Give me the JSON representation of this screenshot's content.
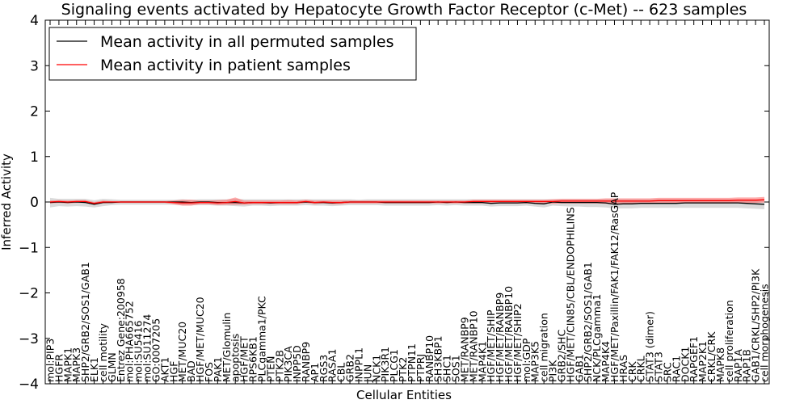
{
  "chart_data": {
    "type": "line",
    "title": "Signaling events activated by Hepatocyte Growth Factor Receptor (c-Met) -- 623 samples",
    "xlabel": "Cellular Entities",
    "ylabel": "Inferred Activity",
    "ylim": [
      -4,
      4
    ],
    "yticks": [
      -4,
      -3,
      -2,
      -1,
      0,
      1,
      2,
      3,
      4
    ],
    "ytick_labels": [
      "−4",
      "−3",
      "−2",
      "−1",
      "0",
      "1",
      "2",
      "3",
      "4"
    ],
    "grid": false,
    "legend_position": "top-left",
    "categories": [
      "mol:PIP3",
      "HGFR",
      "MAPK1",
      "MAPK3",
      "SHP2/GRB2/SOS1/GAB1",
      "ELK1",
      "cell motility",
      "GLMN",
      "Entrez Gene:200958",
      "mol:PHA665752",
      "mol:SU5416",
      "mol:SU11274",
      "GO:0007205",
      "AKT1",
      "HGF",
      "MET/MUC20",
      "BAD",
      "HGF/MET/MUC20",
      "FOS",
      "PAK1",
      "MET/Glomulin",
      "apoptosis",
      "HGF/MET",
      "RPS6KB1",
      "PLCgamma1/PKC",
      "PTEN",
      "PTK2B",
      "PIK3CA",
      "INPP5D",
      "RANBP9",
      "AP1",
      "RGS3",
      "RASA1",
      "CBL",
      "GRB2",
      "INPPL1",
      "JUN",
      "NCK1",
      "PIK3R1",
      "PLCG1",
      "PTK2",
      "PTPN11",
      "PTPRJ",
      "RANBP10",
      "SH3KBP1",
      "SHC1",
      "SOS1",
      "MET/RANBP9",
      "MET/RANBP10",
      "MAP4K1",
      "HGF/MET/SHIP",
      "HGF/MET/RANBP9",
      "HGF/MET/RANBP10",
      "HGF/MET/SHIP2",
      "mol:GDP",
      "MAP3K5",
      "cell migration",
      "PI3K",
      "GRB2/SHC",
      "HGF/MET/CIN85/CBL/ENDOPHILINS",
      "GAB1",
      "SHP2/GRB2/SOS1/GAB1",
      "NCK/PLCgamma1",
      "MAP4K4",
      "HGF/MET/Paxillin/FAK1/FAK12/RasGAP",
      "HRAS",
      "CRK",
      "CRKL",
      "STAT3 (dimer)",
      "STAT3",
      "SRC",
      "RAC1",
      "DOCK1",
      "RAPGEF1",
      "MAP2K1",
      "CRKL/CRK",
      "MAPK8",
      "cell proliferation",
      "RAP1A",
      "RAP1B",
      "GAB1/CRKL/SHP2/PI3K",
      "cell morphogenesis"
    ],
    "series": [
      {
        "name": "Mean activity in all permuted samples",
        "color": "#000000",
        "values": [
          -0.01,
          0.0,
          -0.01,
          0.0,
          -0.01,
          -0.05,
          -0.01,
          -0.01,
          0.0,
          0.0,
          0.0,
          0.0,
          0.0,
          0.0,
          0.0,
          0.0,
          -0.01,
          0.0,
          0.0,
          -0.01,
          -0.01,
          -0.01,
          -0.02,
          -0.01,
          -0.01,
          -0.02,
          -0.01,
          -0.01,
          -0.01,
          0.0,
          -0.01,
          -0.01,
          -0.02,
          -0.01,
          0.0,
          0.0,
          0.0,
          0.0,
          -0.01,
          -0.01,
          -0.01,
          -0.01,
          -0.01,
          -0.01,
          0.0,
          -0.01,
          0.0,
          -0.01,
          -0.01,
          -0.01,
          -0.03,
          -0.02,
          -0.02,
          -0.02,
          -0.01,
          -0.03,
          -0.04,
          0.0,
          -0.01,
          -0.01,
          -0.01,
          -0.01,
          -0.01,
          -0.02,
          -0.05,
          -0.04,
          -0.04,
          -0.03,
          -0.03,
          -0.03,
          -0.03,
          -0.03,
          -0.02,
          -0.02,
          -0.02,
          -0.02,
          -0.02,
          -0.02,
          -0.02,
          -0.03,
          -0.04,
          -0.05
        ],
        "band_upper": [
          0.09,
          0.07,
          0.07,
          0.07,
          0.07,
          0.04,
          0.07,
          0.06,
          0.05,
          0.05,
          0.05,
          0.05,
          0.05,
          0.05,
          0.05,
          0.06,
          0.05,
          0.06,
          0.06,
          0.06,
          0.06,
          0.07,
          0.06,
          0.06,
          0.06,
          0.06,
          0.06,
          0.06,
          0.06,
          0.06,
          0.06,
          0.06,
          0.06,
          0.06,
          0.06,
          0.05,
          0.06,
          0.06,
          0.06,
          0.06,
          0.06,
          0.06,
          0.06,
          0.06,
          0.06,
          0.06,
          0.06,
          0.06,
          0.06,
          0.06,
          0.06,
          0.06,
          0.06,
          0.06,
          0.06,
          0.06,
          0.06,
          0.06,
          0.06,
          0.06,
          0.06,
          0.06,
          0.06,
          0.06,
          0.06,
          0.06,
          0.06,
          0.06,
          0.06,
          0.06,
          0.06,
          0.06,
          0.06,
          0.06,
          0.06,
          0.06,
          0.06,
          0.06,
          0.06,
          0.06,
          0.06,
          0.06
        ],
        "band_lower": [
          -0.12,
          -0.09,
          -0.1,
          -0.09,
          -0.1,
          -0.12,
          -0.09,
          -0.07,
          -0.06,
          -0.06,
          -0.06,
          -0.06,
          -0.06,
          -0.06,
          -0.06,
          -0.07,
          -0.07,
          -0.07,
          -0.07,
          -0.08,
          -0.08,
          -0.09,
          -0.1,
          -0.08,
          -0.08,
          -0.09,
          -0.08,
          -0.08,
          -0.08,
          -0.07,
          -0.08,
          -0.08,
          -0.09,
          -0.08,
          -0.07,
          -0.07,
          -0.07,
          -0.07,
          -0.08,
          -0.08,
          -0.08,
          -0.08,
          -0.08,
          -0.08,
          -0.07,
          -0.08,
          -0.07,
          -0.08,
          -0.08,
          -0.08,
          -0.1,
          -0.09,
          -0.09,
          -0.09,
          -0.08,
          -0.1,
          -0.12,
          -0.08,
          -0.09,
          -0.1,
          -0.1,
          -0.11,
          -0.11,
          -0.12,
          -0.14,
          -0.14,
          -0.14,
          -0.13,
          -0.13,
          -0.13,
          -0.13,
          -0.13,
          -0.13,
          -0.13,
          -0.13,
          -0.13,
          -0.13,
          -0.13,
          -0.13,
          -0.14,
          -0.15,
          -0.16
        ]
      },
      {
        "name": "Mean activity in patient samples",
        "color": "#ff0000",
        "values": [
          0.0,
          0.01,
          0.0,
          0.01,
          0.01,
          -0.03,
          0.0,
          0.0,
          0.0,
          0.0,
          0.0,
          0.0,
          0.0,
          0.0,
          -0.01,
          -0.02,
          -0.02,
          -0.01,
          -0.01,
          -0.02,
          -0.01,
          0.01,
          -0.02,
          -0.01,
          -0.01,
          -0.01,
          -0.01,
          -0.01,
          -0.01,
          0.01,
          -0.01,
          0.0,
          -0.01,
          -0.01,
          0.0,
          0.0,
          0.0,
          0.0,
          0.0,
          0.0,
          0.0,
          0.0,
          0.0,
          0.0,
          0.0,
          0.0,
          0.0,
          0.0,
          0.01,
          0.01,
          0.01,
          0.01,
          0.01,
          0.01,
          0.01,
          0.01,
          0.01,
          0.01,
          0.02,
          0.02,
          0.02,
          0.02,
          0.02,
          0.02,
          0.02,
          0.02,
          0.02,
          0.02,
          0.02,
          0.03,
          0.03,
          0.03,
          0.03,
          0.03,
          0.03,
          0.03,
          0.03,
          0.03,
          0.04,
          0.04,
          0.04,
          0.05
        ],
        "band_upper": [
          0.03,
          0.04,
          0.03,
          0.04,
          0.04,
          0.0,
          0.03,
          0.02,
          0.02,
          0.02,
          0.02,
          0.02,
          0.02,
          0.02,
          0.03,
          0.05,
          0.05,
          0.03,
          0.03,
          0.04,
          0.05,
          0.1,
          0.03,
          0.03,
          0.03,
          0.03,
          0.03,
          0.04,
          0.03,
          0.05,
          0.03,
          0.03,
          0.03,
          0.03,
          0.03,
          0.03,
          0.03,
          0.03,
          0.03,
          0.03,
          0.03,
          0.03,
          0.03,
          0.03,
          0.03,
          0.03,
          0.03,
          0.03,
          0.05,
          0.05,
          0.05,
          0.05,
          0.05,
          0.05,
          0.05,
          0.05,
          0.05,
          0.06,
          0.07,
          0.07,
          0.07,
          0.07,
          0.07,
          0.08,
          0.08,
          0.08,
          0.08,
          0.08,
          0.08,
          0.09,
          0.09,
          0.09,
          0.09,
          0.09,
          0.09,
          0.09,
          0.09,
          0.09,
          0.1,
          0.1,
          0.1,
          0.11
        ],
        "band_lower": [
          -0.03,
          -0.02,
          -0.03,
          -0.02,
          -0.02,
          -0.06,
          -0.03,
          -0.02,
          -0.02,
          -0.02,
          -0.02,
          -0.02,
          -0.02,
          -0.02,
          -0.05,
          -0.08,
          -0.08,
          -0.05,
          -0.05,
          -0.07,
          -0.06,
          -0.06,
          -0.06,
          -0.05,
          -0.05,
          -0.05,
          -0.05,
          -0.05,
          -0.05,
          -0.02,
          -0.05,
          -0.03,
          -0.05,
          -0.05,
          -0.03,
          -0.03,
          -0.03,
          -0.03,
          -0.03,
          -0.03,
          -0.03,
          -0.03,
          -0.03,
          -0.03,
          -0.03,
          -0.03,
          -0.03,
          -0.03,
          -0.03,
          -0.03,
          -0.03,
          -0.03,
          -0.03,
          -0.03,
          -0.03,
          -0.03,
          -0.03,
          -0.04,
          -0.03,
          -0.03,
          -0.03,
          -0.03,
          -0.03,
          -0.04,
          -0.04,
          -0.04,
          -0.04,
          -0.04,
          -0.04,
          -0.03,
          -0.03,
          -0.03,
          -0.03,
          -0.03,
          -0.03,
          -0.03,
          -0.03,
          -0.03,
          -0.02,
          -0.02,
          -0.02,
          -0.01
        ]
      }
    ]
  }
}
